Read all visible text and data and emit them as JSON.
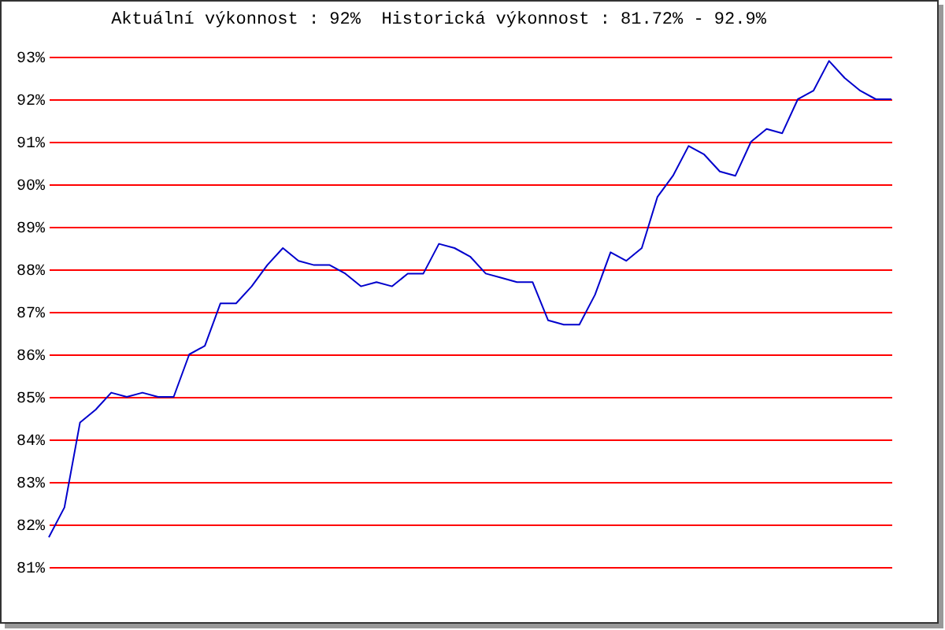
{
  "chart_data": {
    "type": "line",
    "title": "Aktuální výkonnost : 92%  Historická výkonnost : 81.72% - 92.9%",
    "categories": [
      null,
      null,
      null,
      null,
      null,
      null,
      null,
      null,
      null,
      null,
      null,
      null,
      null,
      null,
      null,
      null,
      null,
      null,
      null,
      null,
      null,
      null,
      null,
      null,
      null,
      null,
      null,
      null,
      null,
      null,
      null,
      null,
      null,
      null,
      null,
      null,
      null,
      null,
      null,
      null,
      null,
      null,
      null,
      null,
      null,
      null,
      null,
      null,
      null,
      null,
      null,
      null,
      null,
      null,
      null
    ],
    "series": [
      {
        "color": "#0000cc",
        "values": [
          81.7,
          82.4,
          84.4,
          84.7,
          85.1,
          85.0,
          85.1,
          85.0,
          85.0,
          86.0,
          86.2,
          87.2,
          87.2,
          87.6,
          88.1,
          88.5,
          88.2,
          88.1,
          88.1,
          87.9,
          87.6,
          87.7,
          87.6,
          87.9,
          87.9,
          88.6,
          88.5,
          88.3,
          87.9,
          87.8,
          87.7,
          87.7,
          86.8,
          86.7,
          86.7,
          87.4,
          88.4,
          88.2,
          88.5,
          89.7,
          90.2,
          90.9,
          90.7,
          90.3,
          90.2,
          91.0,
          91.3,
          91.2,
          92.0,
          92.2,
          92.9,
          92.5,
          92.2,
          92.0,
          92.0
        ]
      }
    ],
    "ylim": [
      81,
      93
    ],
    "yticks": [
      {
        "value": 81,
        "label": "81%"
      },
      {
        "value": 82,
        "label": "82%"
      },
      {
        "value": 83,
        "label": "83%"
      },
      {
        "value": 84,
        "label": "84%"
      },
      {
        "value": 85,
        "label": "85%"
      },
      {
        "value": 86,
        "label": "86%"
      },
      {
        "value": 87,
        "label": "87%"
      },
      {
        "value": 88,
        "label": "88%"
      },
      {
        "value": 89,
        "label": "89%"
      },
      {
        "value": 90,
        "label": "90%"
      },
      {
        "value": 91,
        "label": "91%"
      },
      {
        "value": 92,
        "label": "92%"
      },
      {
        "value": 93,
        "label": "93%"
      }
    ],
    "grid": "y",
    "tick_labels": "y",
    "marker": "none",
    "line_style": "solid"
  }
}
